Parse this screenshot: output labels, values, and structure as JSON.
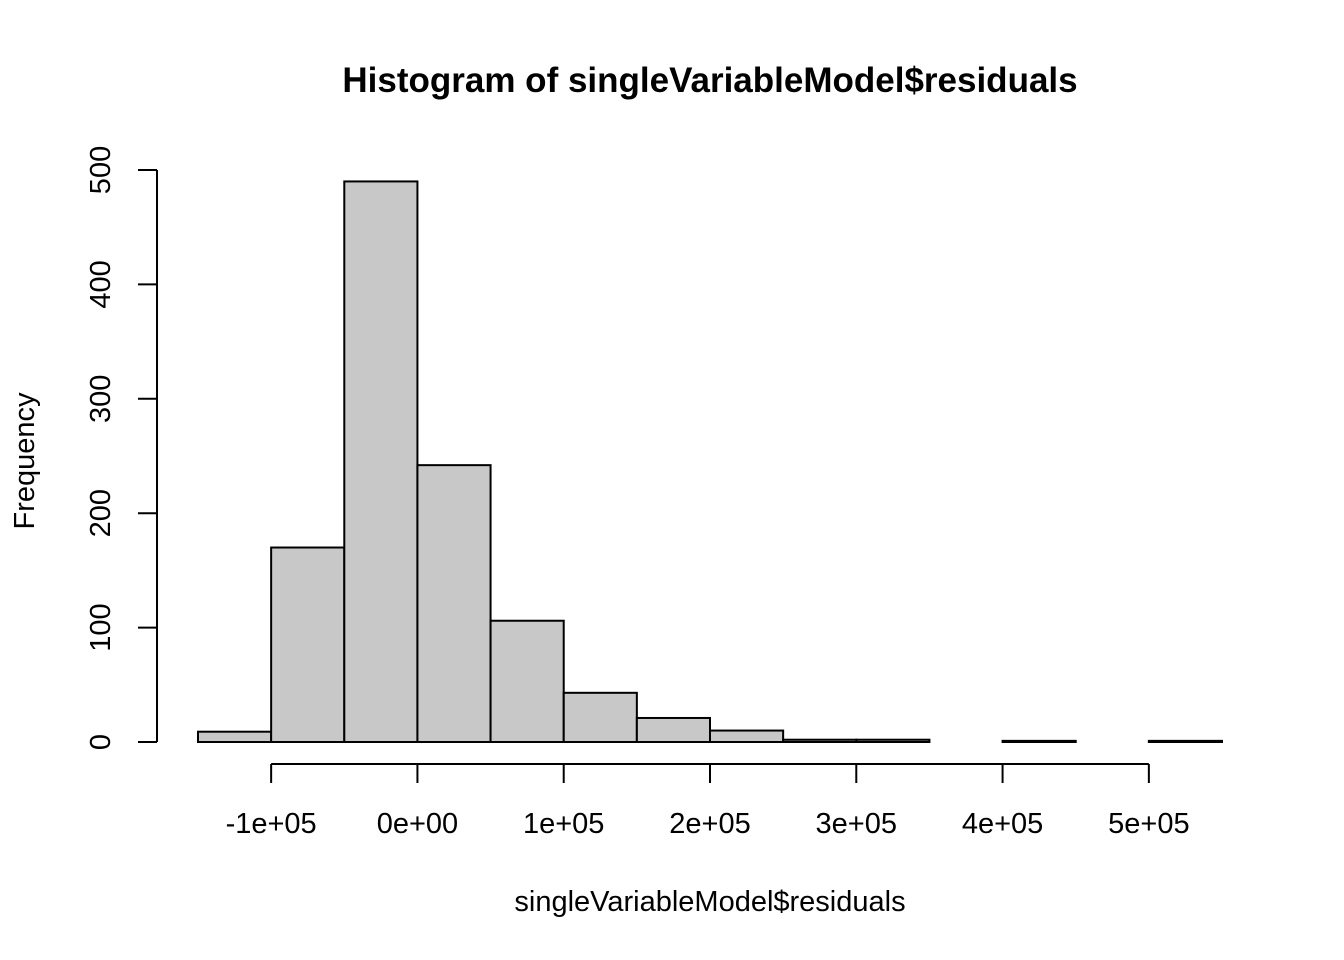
{
  "chart_data": {
    "type": "bar",
    "title": "Histogram of singleVariableModel$residuals",
    "xlabel": "singleVariableModel$residuals",
    "ylabel": "Frequency",
    "bin_edges": [
      -150000,
      -100000,
      -50000,
      0,
      50000,
      100000,
      150000,
      200000,
      250000,
      300000,
      350000,
      400000,
      450000,
      500000,
      550000
    ],
    "values": [
      9,
      170,
      490,
      242,
      106,
      43,
      21,
      10,
      2,
      2,
      0,
      1,
      0,
      1
    ],
    "xlim": [
      -150000,
      550000
    ],
    "ylim": [
      0,
      500
    ],
    "x_ticks": [
      {
        "value": -100000,
        "label": "-1e+05"
      },
      {
        "value": 0,
        "label": "0e+00"
      },
      {
        "value": 100000,
        "label": "1e+05"
      },
      {
        "value": 200000,
        "label": "2e+05"
      },
      {
        "value": 300000,
        "label": "3e+05"
      },
      {
        "value": 400000,
        "label": "4e+05"
      },
      {
        "value": 500000,
        "label": "5e+05"
      }
    ],
    "y_ticks": [
      {
        "value": 0,
        "label": "0"
      },
      {
        "value": 100,
        "label": "100"
      },
      {
        "value": 200,
        "label": "200"
      },
      {
        "value": 300,
        "label": "300"
      },
      {
        "value": 400,
        "label": "400"
      },
      {
        "value": 500,
        "label": "500"
      }
    ],
    "bar_color": "#c8c8c8",
    "border_color": "#000000",
    "grid": false
  }
}
